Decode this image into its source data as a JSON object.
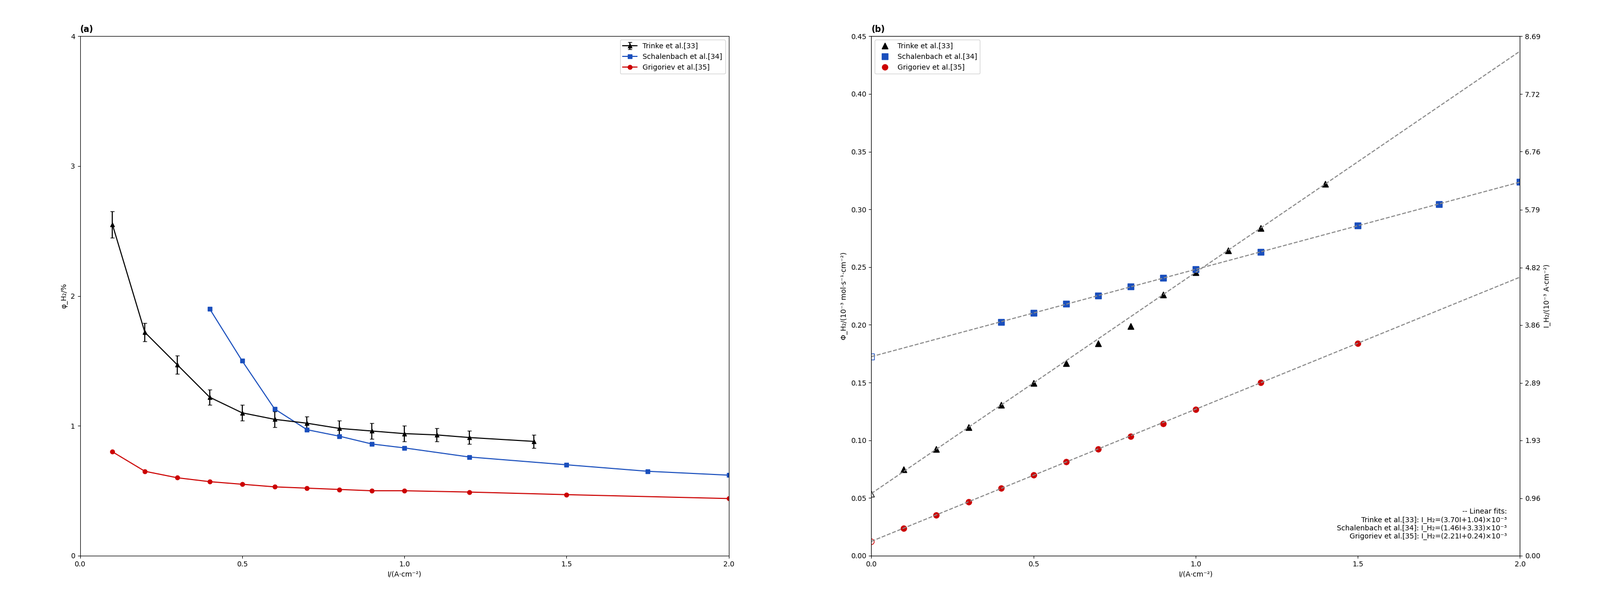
{
  "chart_data": [
    {
      "type": "line",
      "title": "(a)",
      "x_label": "I/(A·cm⁻²)",
      "y_label": "φ_H₂/%",
      "xlim": [
        0,
        2.0
      ],
      "ylim": [
        0,
        4.0
      ],
      "xticks": [
        {
          "value": 0,
          "label": "0.0"
        },
        0.5,
        1.0,
        1.5,
        2.0
      ],
      "yticks": [
        0,
        1,
        2,
        3,
        4
      ],
      "legend": "upper right",
      "series": [
        {
          "name": "Trinke et al.[33]",
          "color": "#000000",
          "marker": "triangle",
          "line_style": "solid",
          "x": [
            0.1,
            0.2,
            0.3,
            0.4,
            0.5,
            0.6,
            0.7,
            0.8,
            0.9,
            1.0,
            1.1,
            1.2,
            1.4
          ],
          "values": [
            2.55,
            1.72,
            1.47,
            1.22,
            1.1,
            1.05,
            1.02,
            0.98,
            0.96,
            0.94,
            0.93,
            0.91,
            0.88
          ],
          "yerr": [
            0.1,
            0.07,
            0.07,
            0.06,
            0.06,
            0.06,
            0.05,
            0.06,
            0.06,
            0.06,
            0.05,
            0.05,
            0.05
          ]
        },
        {
          "name": "Schalenbach et al.[34]",
          "color": "#1a4fbd",
          "marker": "square",
          "line_style": "solid",
          "x": [
            0.4,
            0.5,
            0.6,
            0.7,
            0.8,
            0.9,
            1.0,
            1.2,
            1.5,
            1.75,
            2.0
          ],
          "values": [
            1.9,
            1.5,
            1.13,
            0.97,
            0.92,
            0.86,
            0.83,
            0.76,
            0.7,
            0.65,
            0.62
          ]
        },
        {
          "name": "Grigoriev et al.[35]",
          "color": "#cc0000",
          "marker": "circle",
          "line_style": "solid",
          "x": [
            0.1,
            0.2,
            0.3,
            0.4,
            0.5,
            0.6,
            0.7,
            0.8,
            0.9,
            1.0,
            1.2,
            1.5,
            2.0
          ],
          "values": [
            0.8,
            0.65,
            0.6,
            0.57,
            0.55,
            0.53,
            0.52,
            0.51,
            0.5,
            0.5,
            0.49,
            0.47,
            0.44
          ]
        }
      ]
    },
    {
      "type": "scatter",
      "title": "(b)",
      "x_label": "I/(A·cm⁻²)",
      "y_label": "Φ_H₂/(10⁻³ mol·s⁻¹·cm⁻²)",
      "y2_label": "I_H₂/(10⁻³ A·cm⁻²)",
      "xlim": [
        0,
        2.0
      ],
      "xticks": [
        {
          "value": 0,
          "label": "0.0"
        },
        0.5,
        1.0,
        1.5,
        2.0
      ],
      "ylim": [
        0,
        0.45
      ],
      "yticks": [
        {
          "value": 0,
          "label": "0.00"
        },
        0.05,
        {
          "value": 0.1,
          "label": "0.10"
        },
        0.15,
        {
          "value": 0.2,
          "label": "0.20"
        },
        0.25,
        {
          "value": 0.3,
          "label": "0.30"
        },
        0.35,
        {
          "value": 0.4,
          "label": "0.40"
        },
        0.45
      ],
      "y2lim": [
        0,
        8.69
      ],
      "y2ticks": [
        {
          "value": 0,
          "label": "0.00"
        },
        0.96,
        1.93,
        2.89,
        3.86,
        4.82,
        5.79,
        6.76,
        7.72,
        8.69
      ],
      "legend": "upper left",
      "annotations": [
        "-- Linear fits:\nTrinke et al.[33]: I_H₂=(3.70I+1.04)×10⁻³\nSchalenbach et al.[34]: I_H₂=(1.46I+3.33)×10⁻³\nGrigoriev et al.[35]: I_H₂=(2.21I+0.24)×10⁻³"
      ],
      "series": [
        {
          "name": "Trinke et al.[33]",
          "color": "#000000",
          "marker": "triangle",
          "axis": "y2",
          "x": [
            0.1,
            0.2,
            0.3,
            0.4,
            0.5,
            0.6,
            0.7,
            0.8,
            0.9,
            1.0,
            1.1,
            1.2,
            1.4
          ],
          "values": [
            1.44,
            1.78,
            2.15,
            2.52,
            2.89,
            3.22,
            3.55,
            3.84,
            4.37,
            4.74,
            5.11,
            5.48,
            6.22
          ]
        },
        {
          "name": "Schalenbach et al.[34]",
          "color": "#1a4fbd",
          "marker": "square",
          "axis": "y2",
          "x": [
            0.4,
            0.5,
            0.6,
            0.7,
            0.8,
            0.9,
            1.0,
            1.2,
            1.5,
            1.75,
            2.0
          ],
          "values": [
            3.91,
            4.06,
            4.21,
            4.35,
            4.5,
            4.65,
            4.79,
            5.08,
            5.52,
            5.88,
            6.25
          ]
        },
        {
          "name": "Grigoriev et al.[35]",
          "color": "#cc0000",
          "marker": "circle",
          "axis": "y2",
          "x": [
            0.1,
            0.2,
            0.3,
            0.4,
            0.5,
            0.6,
            0.7,
            0.8,
            0.9,
            1.0,
            1.2,
            1.5
          ],
          "values": [
            0.46,
            0.68,
            0.9,
            1.13,
            1.35,
            1.57,
            1.78,
            2.0,
            2.21,
            2.45,
            2.9,
            3.55
          ]
        },
        {
          "color": "#1a4fbd",
          "marker": "open_square",
          "axis": "y2",
          "x": [
            0.0
          ],
          "values": [
            3.33
          ]
        },
        {
          "color": "#000000",
          "marker": "open_triangle",
          "axis": "y2",
          "x": [
            0.0
          ],
          "values": [
            1.04
          ]
        },
        {
          "color": "#cc0000",
          "marker": "open_circle",
          "axis": "y2",
          "x": [
            0.0
          ],
          "values": [
            0.24
          ]
        },
        {
          "type": "line",
          "color": "#888888",
          "line_style": "dashed",
          "axis": "y2",
          "x": [
            0,
            2.0
          ],
          "values": [
            1.04,
            8.44
          ]
        },
        {
          "type": "line",
          "color": "#888888",
          "line_style": "dashed",
          "axis": "y2",
          "x": [
            0,
            2.0
          ],
          "values": [
            3.33,
            6.25
          ]
        },
        {
          "type": "line",
          "color": "#888888",
          "line_style": "dashed",
          "axis": "y2",
          "x": [
            0,
            2.0
          ],
          "values": [
            0.24,
            4.66
          ]
        }
      ]
    }
  ]
}
